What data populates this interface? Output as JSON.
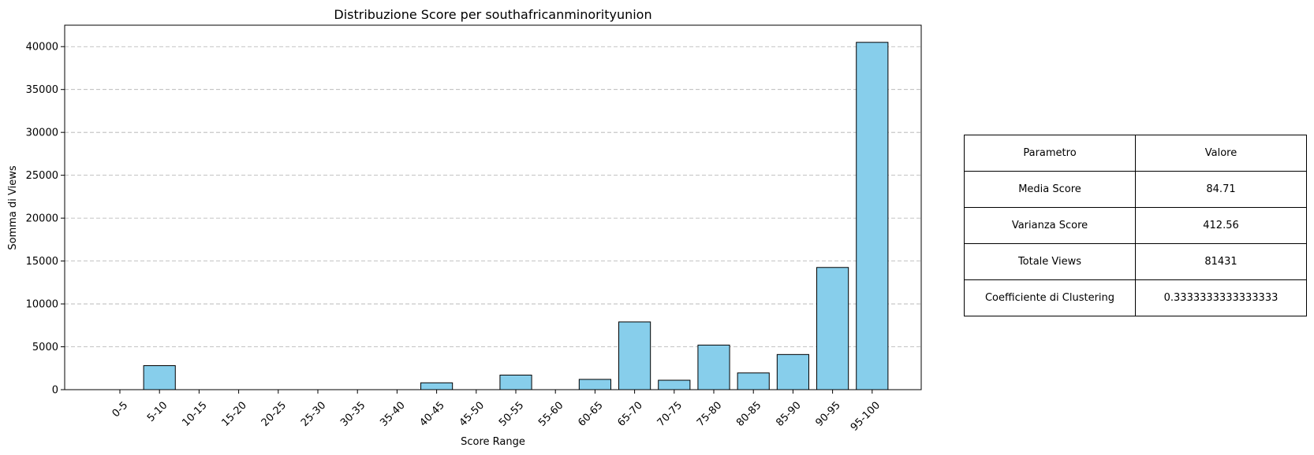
{
  "chart_data": {
    "type": "bar",
    "title": "Distribuzione Score per southafricanminorityunion",
    "xlabel": "Score Range",
    "ylabel": "Somma di Views",
    "categories": [
      "0-5",
      "5-10",
      "10-15",
      "15-20",
      "20-25",
      "25-30",
      "30-35",
      "35-40",
      "40-45",
      "45-50",
      "50-55",
      "55-60",
      "60-65",
      "65-70",
      "70-75",
      "75-80",
      "80-85",
      "85-90",
      "90-95",
      "95-100"
    ],
    "values": [
      0,
      2800,
      0,
      0,
      0,
      0,
      0,
      0,
      800,
      0,
      1700,
      0,
      1200,
      7900,
      1100,
      5200,
      1950,
      4100,
      14250,
      40500
    ],
    "ylim": [
      0,
      42500
    ],
    "yticks": [
      0,
      5000,
      10000,
      15000,
      20000,
      25000,
      30000,
      35000,
      40000
    ],
    "grid": "horizontal dashed",
    "bar_color": "#87CEEB",
    "edge_color": "#000000"
  },
  "table": {
    "header": [
      "Parametro",
      "Valore"
    ],
    "rows": [
      [
        "Media Score",
        "84.71"
      ],
      [
        "Varianza Score",
        "412.56"
      ],
      [
        "Totale Views",
        "81431"
      ],
      [
        "Coefficiente di Clustering",
        "0.3333333333333333"
      ]
    ]
  }
}
